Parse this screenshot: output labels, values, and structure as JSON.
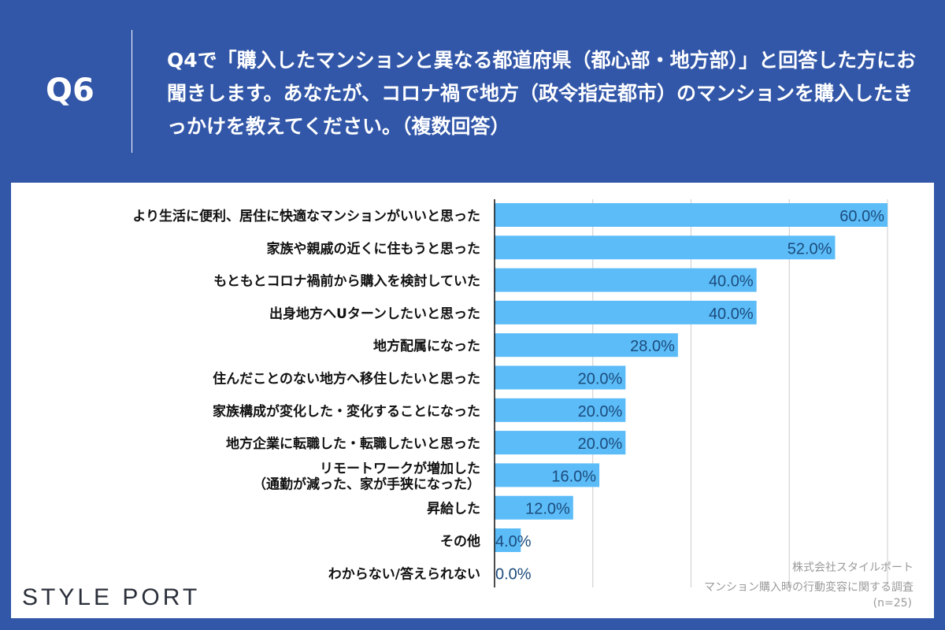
{
  "header": {
    "question_number": "Q6",
    "question_text": "Q4で「購入したマンションと異なる都道府県（都心部・地方部）」と回答した方にお聞きします。あなたが、コロナ禍で地方（政令指定都市）のマンションを購入したきっかけを教えてください。（複数回答）"
  },
  "footer": {
    "logo": "STYLE PORT",
    "source_line1": "株式会社スタイルポート",
    "source_line2": "マンション購入時の行動変容に関する調査",
    "sample": "(n=25)"
  },
  "chart_data": {
    "type": "bar",
    "orientation": "horizontal",
    "categories": [
      "より生活に便利、居住に快適なマンションがいいと思った",
      "家族や親戚の近くに住もうと思った",
      "もともとコロナ禍前から購入を検討していた",
      "出身地方へUターンしたいと思った",
      "地方配属になった",
      "住んだことのない地方へ移住したいと思った",
      "家族構成が変化した・変化することになった",
      "地方企業に転職した・転職したいと思った",
      "リモートワークが増加した\n（通勤が減った、家が手狭になった）",
      "昇給した",
      "その他",
      "わからない/答えられない"
    ],
    "values": [
      60.0,
      52.0,
      40.0,
      40.0,
      28.0,
      20.0,
      20.0,
      20.0,
      16.0,
      12.0,
      4.0,
      0.0
    ],
    "data_labels": [
      "60.0%",
      "52.0%",
      "40.0%",
      "40.0%",
      "28.0%",
      "20.0%",
      "20.0%",
      "20.0%",
      "16.0%",
      "12.0%",
      "4.0%",
      "0.0%"
    ],
    "xlim": [
      0,
      60
    ],
    "gridlines": [
      15,
      30,
      45,
      60
    ],
    "grid": true,
    "colors": {
      "bar": "#5bbcf8",
      "data_label": "#1c4b7c",
      "background": "#3257a8"
    }
  }
}
